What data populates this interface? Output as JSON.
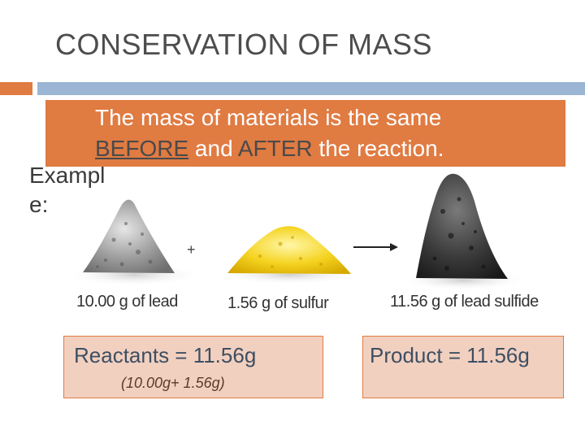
{
  "slide": {
    "title": "CONSERVATION OF MASS"
  },
  "banner": {
    "line1": "The mass of materials is the same",
    "before_word": "BEFORE",
    "and_word": " and ",
    "after_word": "AFTER",
    "end_text": " the reaction."
  },
  "example": {
    "line1": "Exampl",
    "line2": "e:"
  },
  "illustration": {
    "plus_symbol": "+",
    "arrow_icon": "right-arrow-icon",
    "lead_caption": "10.00 g of lead",
    "sulfur_caption": "1.56 g of sulfur",
    "product_caption": "11.56 g of lead sulfide"
  },
  "reactants_box": {
    "text": "Reactants = 11.56g",
    "detail": "(10.00g+ 1.56g)"
  },
  "product_box": {
    "text": "Product = 11.56g"
  },
  "colors": {
    "accent_orange": "#e07b42",
    "accent_blue": "#9bb5d4",
    "box_fill": "#f2d0c0",
    "title_gray": "#4d4d4d"
  }
}
